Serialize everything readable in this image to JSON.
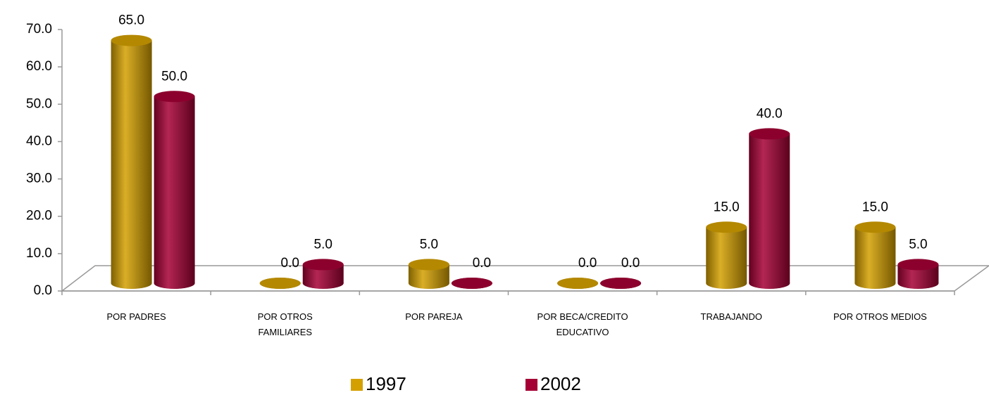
{
  "chart_data": {
    "type": "bar3d",
    "categories": [
      "POR PADRES",
      "POR OTROS FAMILIARES",
      "POR PAREJA",
      "POR BECA/CREDITO EDUCATIVO",
      "TRABAJANDO",
      "POR OTROS MEDIOS"
    ],
    "series": [
      {
        "name": "1997",
        "color": "#d4a000",
        "values": [
          65,
          0,
          5,
          0,
          15,
          15
        ],
        "value_labels": [
          "65.0",
          "0.0",
          "5.0",
          "0.0",
          "15.0",
          "15.0"
        ]
      },
      {
        "name": "2002",
        "color": "#a50035",
        "values": [
          50,
          5,
          0,
          0,
          40,
          5
        ],
        "value_labels": [
          "50.0",
          "5.0",
          "0.0",
          "0.0",
          "40.0",
          "5.0"
        ]
      }
    ],
    "ylim": [
      0,
      70
    ],
    "yticks": [
      {
        "value": 0,
        "label": "0.0"
      },
      {
        "value": 10,
        "label": "10.0"
      },
      {
        "value": 20,
        "label": "20.0"
      },
      {
        "value": 30,
        "label": "30.0"
      },
      {
        "value": 40,
        "label": "40.0"
      },
      {
        "value": 50,
        "label": "50.0"
      },
      {
        "value": 60,
        "label": "60.0"
      },
      {
        "value": 70,
        "label": "70.0"
      }
    ],
    "legend": "bottom"
  }
}
